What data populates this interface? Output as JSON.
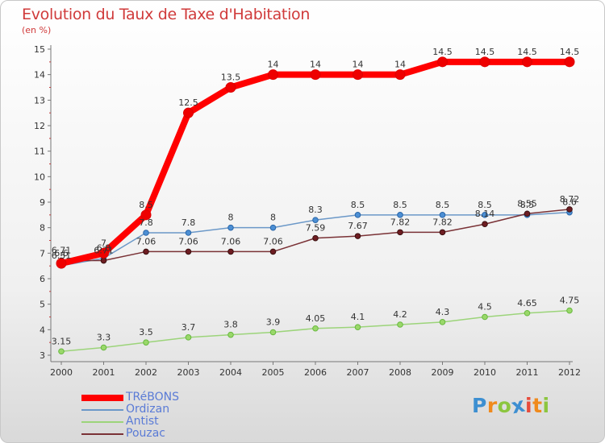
{
  "title": "Evolution du Taux de Taxe d'Habitation",
  "subtitle": "(en %)",
  "brand": {
    "letters": [
      "P",
      "r",
      "o",
      "x",
      "i",
      "t",
      "i"
    ],
    "colors": [
      "#3d8fd1",
      "#f08a1c",
      "#8cc63f",
      "#3d8fd1",
      "#e74c3c",
      "#f08a1c",
      "#8cc63f"
    ]
  },
  "chart_data": {
    "type": "line",
    "x": [
      "2000",
      "2001",
      "2002",
      "2003",
      "2004",
      "2005",
      "2006",
      "2007",
      "2008",
      "2009",
      "2010",
      "2011",
      "2012"
    ],
    "ylim": [
      3,
      15
    ],
    "yticks": [
      "3",
      "4",
      "5",
      "6",
      "7",
      "8",
      "9",
      "10",
      "11",
      "12",
      "13",
      "14",
      "15"
    ],
    "grid": false,
    "legend_position": "bottom-left",
    "series": [
      {
        "name": "Ordizan",
        "color": "#6b98c8",
        "values": [
          6.51,
          6.8,
          7.8,
          7.8,
          8,
          8,
          8.3,
          8.5,
          8.5,
          8.5,
          8.5,
          8.5,
          8.6
        ],
        "labels": [
          "6.51",
          "6.8",
          "7.8",
          "7.8",
          "8",
          "8",
          "8.3",
          "8.5",
          "8.5",
          "8.5",
          "8.5",
          "8.5",
          "8.6"
        ]
      },
      {
        "name": "Antist",
        "color": "#9cd47a",
        "values": [
          3.15,
          3.3,
          3.5,
          3.7,
          3.8,
          3.9,
          4.05,
          4.1,
          4.2,
          4.3,
          4.5,
          4.65,
          4.75
        ],
        "labels": [
          "3.15",
          "3.3",
          "3.5",
          "3.7",
          "3.8",
          "3.9",
          "4.05",
          "4.1",
          "4.2",
          "4.3",
          "4.5",
          "4.65",
          "4.75"
        ]
      },
      {
        "name": "Pouzac",
        "color": "#7a3236",
        "values": [
          6.71,
          6.71,
          7.06,
          7.06,
          7.06,
          7.06,
          7.59,
          7.67,
          7.82,
          7.82,
          8.14,
          8.55,
          8.72
        ],
        "labels": [
          "6.71",
          "6.71",
          "7.06",
          "7.06",
          "7.06",
          "7.06",
          "7.59",
          "7.67",
          "7.82",
          "7.82",
          "8.14",
          "8.55",
          "8.72"
        ]
      },
      {
        "name": "TRéBONS",
        "color": "#ff0000",
        "values": [
          6.6,
          7,
          8.5,
          12.5,
          13.5,
          14,
          14,
          14,
          14,
          14.5,
          14.5,
          14.5,
          14.5
        ],
        "labels": [
          "6.6",
          "7",
          "8.5",
          "12.5",
          "13.5",
          "14",
          "14",
          "14",
          "14",
          "14.5",
          "14.5",
          "14.5",
          "14.5"
        ]
      }
    ],
    "legend_order": [
      "TRéBONS",
      "Ordizan",
      "Antist",
      "Pouzac"
    ]
  }
}
